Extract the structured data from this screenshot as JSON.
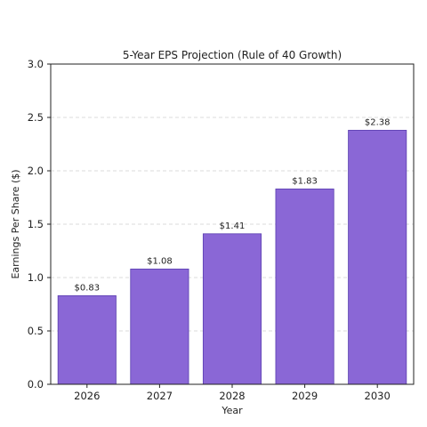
{
  "chart_data": {
    "type": "bar",
    "title": "5-Year EPS Projection (Rule of 40 Growth)",
    "xlabel": "Year",
    "ylabel": "Earnings Per Share ($)",
    "categories": [
      "2026",
      "2027",
      "2028",
      "2029",
      "2030"
    ],
    "values": [
      0.83,
      1.08,
      1.41,
      1.83,
      2.38
    ],
    "data_labels": [
      "$0.83",
      "$1.08",
      "$1.41",
      "$1.83",
      "$2.38"
    ],
    "ylim": [
      0,
      3.0
    ],
    "yticks": [
      0.0,
      0.5,
      1.0,
      1.5,
      2.0,
      2.5,
      3.0
    ],
    "ytick_labels": [
      "0.0",
      "0.5",
      "1.0",
      "1.5",
      "2.0",
      "2.5",
      "3.0"
    ],
    "grid": "y-dashed",
    "bar_color": "#8a67d6",
    "bar_edge_color": "#5b3fb0"
  }
}
